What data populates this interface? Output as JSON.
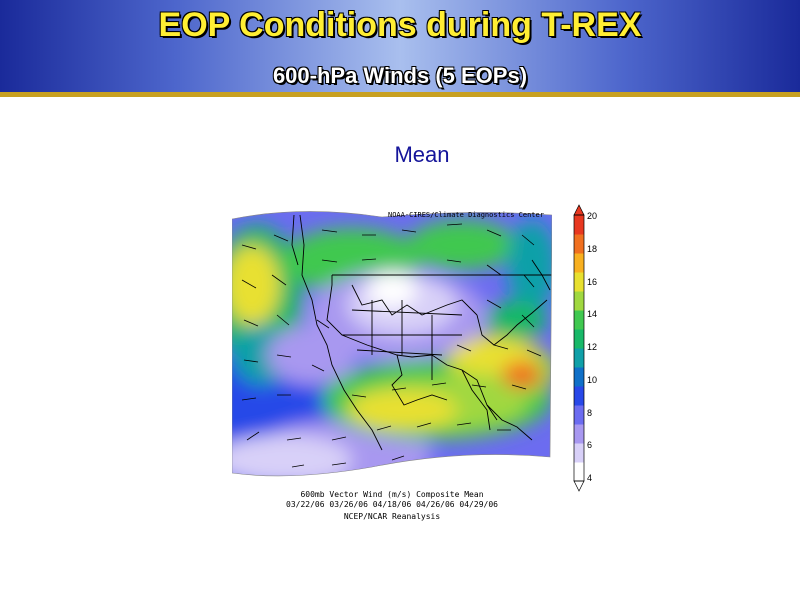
{
  "slide": {
    "title": "EOP Conditions during T-REX",
    "subtitle": "600-hPa Winds (5 EOPs)",
    "panel_title": "Mean"
  },
  "map": {
    "credit": "NOAA-CIRES/Climate Diagnostics Center",
    "caption_line1": "600mb Vector Wind (m/s) Composite Mean",
    "caption_line2": "03/22/06 03/26/06 04/18/06 04/26/06 04/29/06",
    "caption_line3": "NCEP/NCAR Reanalysis",
    "colorbar": {
      "ticks": [
        "20",
        "18",
        "16",
        "14",
        "12",
        "10",
        "8",
        "6",
        "4"
      ],
      "colors": [
        "#ffffff",
        "#d8d0f8",
        "#a898f0",
        "#6c6cf0",
        "#2848e8",
        "#1070c8",
        "#10a0a8",
        "#18b868",
        "#40c850",
        "#a0d840",
        "#e8e030",
        "#f8b020",
        "#f07020",
        "#e83820"
      ]
    }
  }
}
